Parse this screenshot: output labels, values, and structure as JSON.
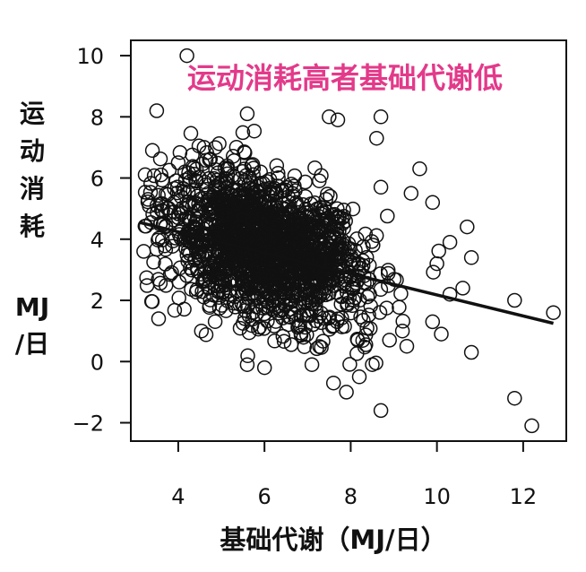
{
  "chart_data": {
    "type": "scatter",
    "title": "运动消耗高者基础代谢低",
    "xlabel": "基础代谢（MJ/日）",
    "ylabel": "运动消耗 MJ /日",
    "ylabel_lines": [
      "运",
      "动",
      "消",
      "耗",
      "MJ",
      "/日"
    ],
    "xlim": [
      2.9,
      13.0
    ],
    "ylim": [
      -2.6,
      10.5
    ],
    "xticks": [
      4,
      6,
      8,
      10,
      12
    ],
    "yticks": [
      -2,
      0,
      2,
      4,
      6,
      8,
      10
    ],
    "xtick_labels": [
      "4",
      "6",
      "8",
      "10",
      "12"
    ],
    "ytick_labels": [
      "−2",
      "0",
      "2",
      "4",
      "6",
      "8",
      "10"
    ],
    "grid": false,
    "point_marker": "open-circle",
    "trendline": {
      "x": [
        3.1,
        12.7
      ],
      "y": [
        4.55,
        1.25
      ]
    },
    "cluster": {
      "n": 1700,
      "x_center": 6.0,
      "y_center": 3.7
    },
    "points": [
      [
        4.2,
        10.0
      ],
      [
        3.5,
        8.2
      ],
      [
        5.6,
        8.1
      ],
      [
        8.7,
        8.0
      ],
      [
        7.7,
        7.9
      ],
      [
        7.5,
        8.0
      ],
      [
        8.6,
        7.3
      ],
      [
        8.7,
        5.7
      ],
      [
        9.6,
        6.3
      ],
      [
        9.4,
        5.5
      ],
      [
        9.9,
        5.2
      ],
      [
        10.7,
        4.4
      ],
      [
        10.3,
        3.9
      ],
      [
        10.0,
        3.2
      ],
      [
        10.8,
        3.4
      ],
      [
        10.3,
        2.2
      ],
      [
        10.6,
        2.4
      ],
      [
        9.9,
        1.3
      ],
      [
        10.1,
        0.9
      ],
      [
        10.8,
        0.3
      ],
      [
        11.8,
        2.0
      ],
      [
        12.7,
        1.6
      ],
      [
        11.8,
        -1.2
      ],
      [
        12.2,
        -2.1
      ],
      [
        8.7,
        -1.6
      ],
      [
        7.9,
        -1.0
      ],
      [
        7.6,
        -0.7
      ],
      [
        8.2,
        -0.5
      ],
      [
        6.0,
        -0.2
      ],
      [
        5.6,
        -0.1
      ],
      [
        7.1,
        -0.1
      ],
      [
        8.5,
        -0.1
      ],
      [
        3.2,
        3.6
      ],
      [
        3.3,
        5.3
      ],
      [
        3.6,
        6.1
      ],
      [
        3.4,
        6.9
      ],
      [
        4.0,
        6.5
      ],
      [
        4.6,
        7.0
      ],
      [
        9.3,
        0.5
      ],
      [
        9.2,
        1.0
      ],
      [
        8.9,
        0.7
      ]
    ]
  }
}
